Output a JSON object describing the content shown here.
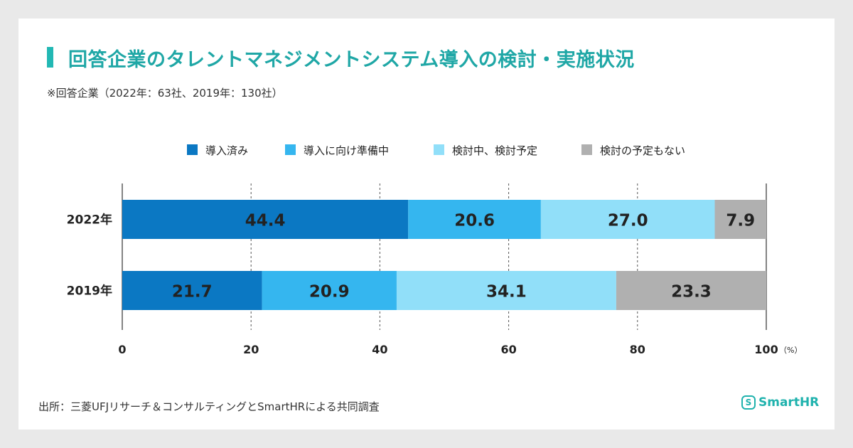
{
  "title": "回答企業のタレントマネジメントシステム導入の検討・実施状況",
  "subtitle": "※回答企業（2022年：63社、2019年：130社）",
  "source": "出所：三菱UFJリサーチ＆コンサルティングとSmartHRによる共同調査",
  "logo": {
    "icon": "S",
    "text": "SmartHR"
  },
  "chart_data": {
    "type": "bar",
    "orientation": "horizontal",
    "stacked": true,
    "categories": [
      "2022年",
      "2019年"
    ],
    "series": [
      {
        "name": "導入済み",
        "color": "#0b78c3",
        "values": [
          44.4,
          21.7
        ]
      },
      {
        "name": "導入に向け準備中",
        "color": "#35b6ef",
        "values": [
          20.6,
          20.9
        ]
      },
      {
        "name": "検討中、検討予定",
        "color": "#91dff9",
        "values": [
          27.0,
          34.1
        ]
      },
      {
        "name": "検討の予定もない",
        "color": "#b0b0b0",
        "values": [
          7.9,
          23.3
        ]
      }
    ],
    "xlim": [
      0,
      100
    ],
    "xticks": [
      "0",
      "20",
      "40",
      "60",
      "80",
      "100"
    ],
    "xunit": "（%）",
    "legend_position": "top",
    "grid": "vertical-dashed"
  }
}
